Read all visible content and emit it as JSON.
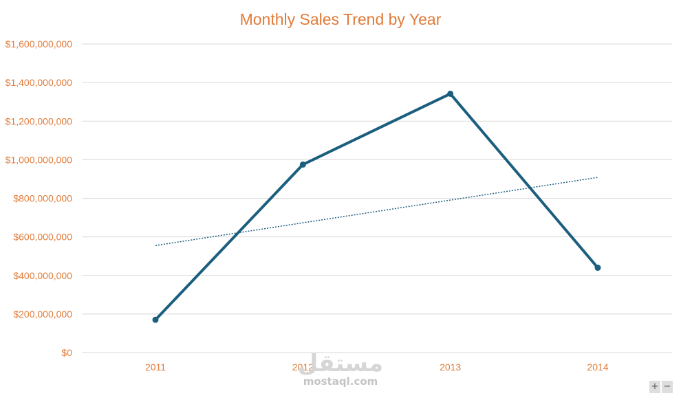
{
  "chart_data": {
    "type": "line",
    "title": "Monthly Sales Trend by Year",
    "xlabel": "",
    "ylabel": "",
    "categories": [
      "2011",
      "2012",
      "2013",
      "2014"
    ],
    "series": [
      {
        "values": [
          170000000,
          975000000,
          1342000000,
          440000000
        ]
      }
    ],
    "trendline": {
      "type": "linear",
      "style": "dotted"
    },
    "ylim": [
      0,
      1600000000
    ],
    "y_ticks": [
      0,
      200000000,
      400000000,
      600000000,
      800000000,
      1000000000,
      1200000000,
      1400000000,
      1600000000
    ],
    "y_tick_labels": [
      "$0",
      "$200,000,000",
      "$400,000,000",
      "$600,000,000",
      "$800,000,000",
      "$1,000,000,000",
      "$1,200,000,000",
      "$1,400,000,000",
      "$1,600,000,000"
    ],
    "grid": true,
    "legend": "none",
    "colors": {
      "line": "#1B5E7E",
      "trendline": "#1B5E7E",
      "text": "#E07B39",
      "grid": "#D9D9D9"
    }
  },
  "watermark": {
    "arabic": "مستقل",
    "latin": "mostaql.com"
  },
  "controls": {
    "zoom_in": "+",
    "zoom_out": "−"
  }
}
